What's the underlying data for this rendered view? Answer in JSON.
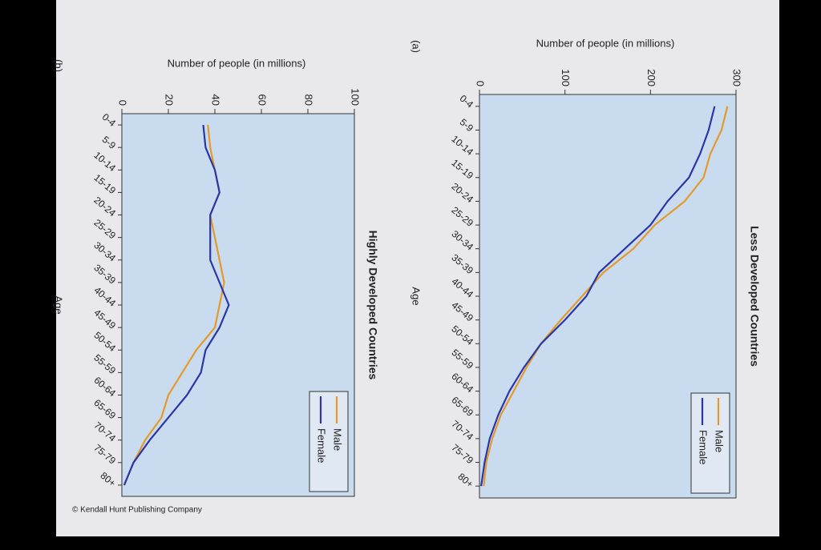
{
  "chart_data": [
    {
      "type": "line",
      "label": "(a)",
      "title": "Less Developed Countries",
      "x_label": "Age",
      "y_label": "Number of people (in millions)",
      "categories": [
        "0-4",
        "5-9",
        "10-14",
        "15-19",
        "20-24",
        "25-29",
        "30-34",
        "35-39",
        "40-44",
        "45-49",
        "50-54",
        "55-59",
        "60-64",
        "65-69",
        "70-74",
        "75-79",
        "80+"
      ],
      "series": [
        {
          "name": "Male",
          "color": "#e39a2a",
          "values": [
            290,
            283,
            270,
            262,
            240,
            205,
            180,
            145,
            120,
            95,
            72,
            55,
            40,
            25,
            15,
            8,
            5
          ]
        },
        {
          "name": "Female",
          "color": "#2b35a8",
          "values": [
            275,
            268,
            258,
            245,
            220,
            200,
            170,
            140,
            125,
            100,
            72,
            52,
            35,
            22,
            12,
            6,
            2
          ]
        }
      ],
      "ylim": [
        0,
        300
      ],
      "yticks": [
        0,
        100,
        200,
        300
      ],
      "legend": "upper right"
    },
    {
      "type": "line",
      "label": "(b)",
      "title": "Highly Developed Countries",
      "x_label": "Age",
      "y_label": "Number of people (in millions)",
      "categories": [
        "0-4",
        "5-9",
        "10-14",
        "15-19",
        "20-24",
        "25-29",
        "30-34",
        "35-39",
        "40-44",
        "45-49",
        "50-54",
        "55-59",
        "60-64",
        "65-69",
        "70-74",
        "75-79",
        "80+"
      ],
      "series": [
        {
          "name": "Male",
          "color": "#e39a2a",
          "values": [
            37,
            38,
            40,
            42,
            38,
            40,
            42,
            44,
            42,
            40,
            32,
            26,
            20,
            17,
            10,
            5,
            1
          ]
        },
        {
          "name": "Female",
          "color": "#2b35a8",
          "values": [
            35,
            36,
            40,
            42,
            38,
            38,
            38,
            42,
            46,
            42,
            36,
            34,
            28,
            20,
            12,
            5,
            1
          ]
        }
      ],
      "ylim": [
        0,
        100
      ],
      "yticks": [
        0,
        20,
        40,
        60,
        80,
        100
      ],
      "legend": "upper right"
    }
  ],
  "credit": "© Kendall Hunt Publishing Company"
}
